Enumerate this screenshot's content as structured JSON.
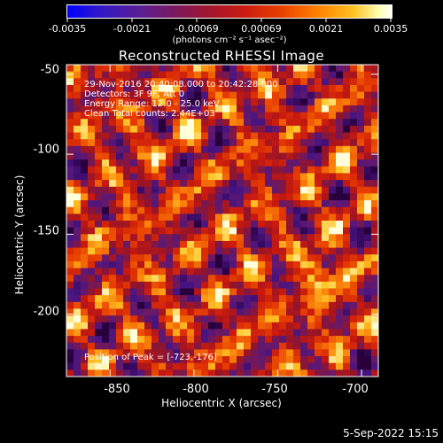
{
  "colorbar": {
    "ticks": [
      "-0.0035",
      "-0.0021",
      "-0.00069",
      "0.00069",
      "0.0021",
      "0.0035"
    ],
    "units_label": "(photons cm⁻² s⁻¹ asec⁻²)",
    "range": [
      -0.0035,
      0.0035
    ]
  },
  "annotations": {
    "time_range": "29-Nov-2016 20:40:08.000 to 20:42:28.000",
    "detectors": "Detectors: 3F 9F, Att 0",
    "energy": "Energy Range: 12.0 - 25.0 keV",
    "clean": "Clean     Total counts: 2.44E+03",
    "peak": "Position of Peak = [-723,-176]"
  },
  "footer": {
    "date": "5-Sep-2022 15:15"
  },
  "chart_data": {
    "type": "heatmap",
    "title": "Reconstructed RHESSI Image",
    "xlabel": "Heliocentric X (arcsec)",
    "ylabel": "Heliocentric Y (arcsec)",
    "xlim": [
      -876,
      -690
    ],
    "ylim": [
      -239,
      -44
    ],
    "x_ticks": [
      "-850",
      "-800",
      "-750",
      "-700"
    ],
    "y_ticks": [
      "-50",
      "-100",
      "-150",
      "-200"
    ],
    "x_tick_values": [
      -850,
      -800,
      -750,
      -700
    ],
    "y_tick_values": [
      -50,
      -100,
      -150,
      -200
    ],
    "colormap": "blue-purple-red-orange-yellow-white",
    "peak_position": [
      -723,
      -176
    ],
    "pixel_grid": [
      44,
      46
    ]
  }
}
